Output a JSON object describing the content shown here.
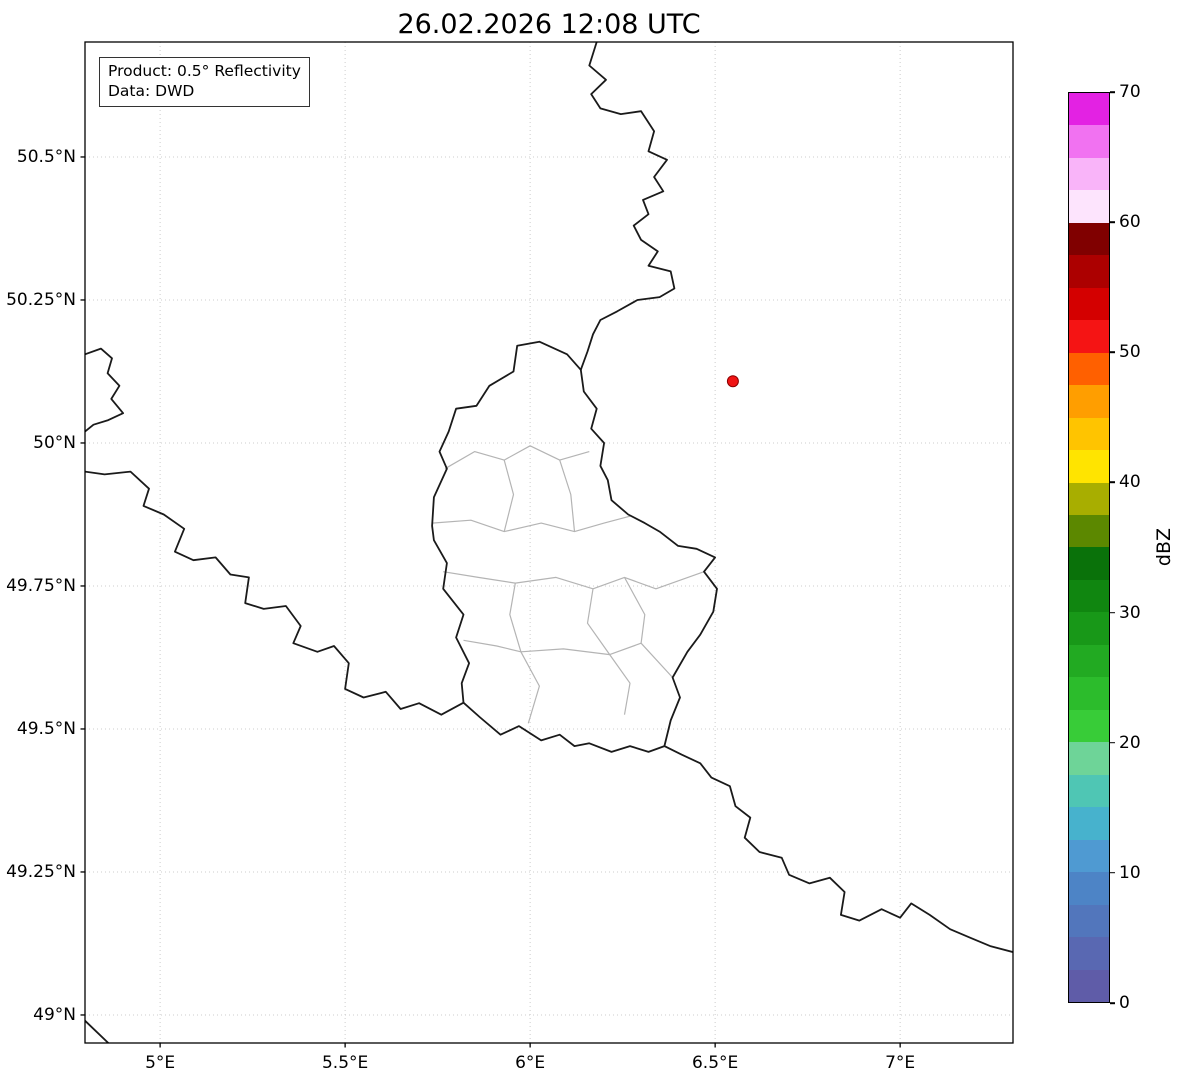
{
  "title": "26.02.2026 12:08 UTC",
  "info_box": {
    "line1": "Product: 0.5° Reflectivity",
    "line2": "Data: DWD"
  },
  "map": {
    "lon_range": [
      4.797,
      7.305
    ],
    "lat_range": [
      48.951,
      50.701
    ],
    "grid_color": "#cccccc",
    "x_ticks": [
      {
        "value": 5.0,
        "label": "5°E"
      },
      {
        "value": 5.5,
        "label": "5.5°E"
      },
      {
        "value": 6.0,
        "label": "6°E"
      },
      {
        "value": 6.5,
        "label": "6.5°E"
      },
      {
        "value": 7.0,
        "label": "7°E"
      }
    ],
    "y_ticks": [
      {
        "value": 49.0,
        "label": "49°N"
      },
      {
        "value": 49.25,
        "label": "49.25°N"
      },
      {
        "value": 49.5,
        "label": "49.5°N"
      },
      {
        "value": 49.75,
        "label": "49.75°N"
      },
      {
        "value": 50.0,
        "label": "50°N"
      },
      {
        "value": 50.25,
        "label": "50.25°N"
      },
      {
        "value": 50.5,
        "label": "50.5°N"
      }
    ],
    "radar_site": {
      "lon": 6.548,
      "lat": 50.108,
      "color": "#f01414",
      "edge_color": "#8b0000"
    },
    "border_colors": {
      "national": "#1a1a1a",
      "regional": "#b4b4b4"
    },
    "borders_national": [
      [
        [
          6.18,
          50.701
        ],
        [
          6.16,
          50.66
        ],
        [
          6.205,
          50.635
        ],
        [
          6.165,
          50.61
        ],
        [
          6.19,
          50.585
        ],
        [
          6.245,
          50.575
        ],
        [
          6.3,
          50.58
        ],
        [
          6.335,
          50.545
        ],
        [
          6.32,
          50.51
        ],
        [
          6.37,
          50.495
        ],
        [
          6.335,
          50.465
        ],
        [
          6.36,
          50.44
        ],
        [
          6.305,
          50.425
        ],
        [
          6.32,
          50.4
        ],
        [
          6.28,
          50.38
        ],
        [
          6.3,
          50.355
        ],
        [
          6.345,
          50.335
        ],
        [
          6.32,
          50.31
        ],
        [
          6.38,
          50.3
        ],
        [
          6.39,
          50.27
        ],
        [
          6.35,
          50.255
        ],
        [
          6.29,
          50.25
        ],
        [
          6.235,
          50.23
        ],
        [
          6.19,
          50.215
        ],
        [
          6.17,
          50.19
        ],
        [
          6.155,
          50.16
        ],
        [
          6.137,
          50.128
        ]
      ],
      [
        [
          6.137,
          50.128
        ],
        [
          6.1,
          50.155
        ],
        [
          6.025,
          50.177
        ],
        [
          5.965,
          50.17
        ],
        [
          5.955,
          50.125
        ],
        [
          5.89,
          50.1
        ],
        [
          5.855,
          50.065
        ],
        [
          5.8,
          50.06
        ],
        [
          5.78,
          50.02
        ],
        [
          5.755,
          49.985
        ],
        [
          5.775,
          49.955
        ],
        [
          5.74,
          49.905
        ],
        [
          5.735,
          49.855
        ],
        [
          5.74,
          49.83
        ],
        [
          5.775,
          49.79
        ],
        [
          5.765,
          49.745
        ],
        [
          5.82,
          49.7
        ],
        [
          5.8,
          49.66
        ],
        [
          5.835,
          49.615
        ],
        [
          5.815,
          49.58
        ],
        [
          5.82,
          49.546
        ],
        [
          5.865,
          49.52
        ],
        [
          5.92,
          49.49
        ],
        [
          5.97,
          49.505
        ],
        [
          6.03,
          49.48
        ],
        [
          6.08,
          49.49
        ],
        [
          6.12,
          49.47
        ],
        [
          6.16,
          49.475
        ],
        [
          6.22,
          49.46
        ],
        [
          6.27,
          49.47
        ],
        [
          6.32,
          49.46
        ],
        [
          6.363,
          49.47
        ],
        [
          6.38,
          49.515
        ],
        [
          6.405,
          49.555
        ],
        [
          6.385,
          49.59
        ],
        [
          6.425,
          49.635
        ],
        [
          6.46,
          49.665
        ],
        [
          6.495,
          49.705
        ],
        [
          6.505,
          49.745
        ],
        [
          6.47,
          49.775
        ],
        [
          6.5,
          49.8
        ],
        [
          6.45,
          49.815
        ],
        [
          6.4,
          49.82
        ],
        [
          6.35,
          49.845
        ],
        [
          6.31,
          49.86
        ],
        [
          6.265,
          49.875
        ],
        [
          6.22,
          49.9
        ],
        [
          6.21,
          49.935
        ],
        [
          6.19,
          49.96
        ],
        [
          6.2,
          50.0
        ],
        [
          6.165,
          50.025
        ],
        [
          6.18,
          50.06
        ],
        [
          6.145,
          50.09
        ],
        [
          6.137,
          50.128
        ]
      ],
      [
        [
          4.797,
          49.95
        ],
        [
          4.85,
          49.945
        ],
        [
          4.92,
          49.95
        ],
        [
          4.97,
          49.92
        ],
        [
          4.955,
          49.89
        ],
        [
          5.01,
          49.875
        ],
        [
          5.065,
          49.85
        ],
        [
          5.04,
          49.81
        ],
        [
          5.09,
          49.795
        ],
        [
          5.15,
          49.8
        ],
        [
          5.19,
          49.77
        ],
        [
          5.24,
          49.765
        ],
        [
          5.23,
          49.72
        ],
        [
          5.28,
          49.71
        ],
        [
          5.34,
          49.715
        ],
        [
          5.38,
          49.68
        ],
        [
          5.36,
          49.65
        ],
        [
          5.425,
          49.635
        ],
        [
          5.47,
          49.645
        ],
        [
          5.51,
          49.615
        ],
        [
          5.5,
          49.57
        ],
        [
          5.55,
          49.555
        ],
        [
          5.61,
          49.565
        ],
        [
          5.65,
          49.535
        ],
        [
          5.7,
          49.545
        ],
        [
          5.76,
          49.525
        ],
        [
          5.82,
          49.546
        ]
      ],
      [
        [
          6.363,
          49.47
        ],
        [
          6.41,
          49.455
        ],
        [
          6.46,
          49.44
        ],
        [
          6.49,
          49.415
        ],
        [
          6.54,
          49.4
        ],
        [
          6.555,
          49.365
        ],
        [
          6.595,
          49.345
        ],
        [
          6.58,
          49.31
        ],
        [
          6.62,
          49.285
        ],
        [
          6.68,
          49.275
        ],
        [
          6.7,
          49.245
        ],
        [
          6.755,
          49.23
        ],
        [
          6.81,
          49.24
        ],
        [
          6.85,
          49.215
        ],
        [
          6.84,
          49.175
        ],
        [
          6.89,
          49.165
        ],
        [
          6.95,
          49.185
        ],
        [
          7.0,
          49.17
        ],
        [
          7.03,
          49.195
        ],
        [
          7.08,
          49.175
        ],
        [
          7.135,
          49.15
        ],
        [
          7.19,
          49.135
        ],
        [
          7.245,
          49.12
        ],
        [
          7.305,
          49.11
        ]
      ],
      [
        [
          4.797,
          50.155
        ],
        [
          4.84,
          50.165
        ],
        [
          4.87,
          50.148
        ],
        [
          4.858,
          50.122
        ],
        [
          4.89,
          50.1
        ],
        [
          4.868,
          50.077
        ],
        [
          4.9,
          50.052
        ],
        [
          4.86,
          50.04
        ],
        [
          4.82,
          50.032
        ],
        [
          4.797,
          50.02
        ]
      ],
      [
        [
          4.797,
          48.99
        ],
        [
          4.86,
          48.951
        ]
      ]
    ],
    "borders_regional": [
      [
        [
          5.77,
          49.955
        ],
        [
          5.85,
          49.985
        ],
        [
          5.93,
          49.97
        ],
        [
          6.0,
          49.995
        ],
        [
          6.08,
          49.97
        ],
        [
          6.16,
          49.985
        ]
      ],
      [
        [
          5.735,
          49.86
        ],
        [
          5.84,
          49.865
        ],
        [
          5.93,
          49.845
        ],
        [
          6.03,
          49.86
        ],
        [
          6.12,
          49.845
        ],
        [
          6.2,
          49.86
        ],
        [
          6.27,
          49.872
        ]
      ],
      [
        [
          5.93,
          49.97
        ],
        [
          5.955,
          49.91
        ],
        [
          5.93,
          49.845
        ]
      ],
      [
        [
          6.08,
          49.97
        ],
        [
          6.11,
          49.91
        ],
        [
          6.12,
          49.845
        ]
      ],
      [
        [
          5.765,
          49.775
        ],
        [
          5.86,
          49.765
        ],
        [
          5.96,
          49.755
        ],
        [
          6.07,
          49.765
        ],
        [
          6.17,
          49.745
        ],
        [
          6.255,
          49.765
        ],
        [
          6.34,
          49.745
        ],
        [
          6.47,
          49.775
        ]
      ],
      [
        [
          5.96,
          49.755
        ],
        [
          5.945,
          49.7
        ],
        [
          5.975,
          49.635
        ]
      ],
      [
        [
          6.17,
          49.745
        ],
        [
          6.155,
          49.685
        ],
        [
          6.215,
          49.63
        ]
      ],
      [
        [
          5.82,
          49.655
        ],
        [
          5.91,
          49.645
        ],
        [
          5.975,
          49.635
        ],
        [
          6.09,
          49.64
        ],
        [
          6.215,
          49.63
        ],
        [
          6.3,
          49.65
        ],
        [
          6.385,
          49.59
        ]
      ],
      [
        [
          6.215,
          49.63
        ],
        [
          6.27,
          49.58
        ],
        [
          6.255,
          49.525
        ]
      ],
      [
        [
          5.975,
          49.635
        ],
        [
          6.025,
          49.575
        ],
        [
          5.995,
          49.51
        ]
      ],
      [
        [
          6.3,
          49.65
        ],
        [
          6.31,
          49.7
        ],
        [
          6.255,
          49.765
        ]
      ]
    ]
  },
  "colorbar": {
    "label": "dBZ",
    "min": 0,
    "max": 70,
    "ticks": [
      0,
      10,
      20,
      30,
      40,
      50,
      60,
      70
    ],
    "segment_size_dbz": 2.5,
    "colors_bottom_to_top": [
      "#5f5ca8",
      "#5968b2",
      "#5276bc",
      "#4d84c6",
      "#4f9ad2",
      "#47b2cd",
      "#4fc6b4",
      "#6ed498",
      "#38cc38",
      "#2cbc2c",
      "#22aa22",
      "#189818",
      "#108610",
      "#0a720a",
      "#5c8800",
      "#a8ae00",
      "#ffe400",
      "#ffc400",
      "#ff9e00",
      "#ff6000",
      "#f51414",
      "#d40000",
      "#ac0000",
      "#800000",
      "#fde4fd",
      "#f9b4f9",
      "#f172f1",
      "#e322e3"
    ]
  }
}
